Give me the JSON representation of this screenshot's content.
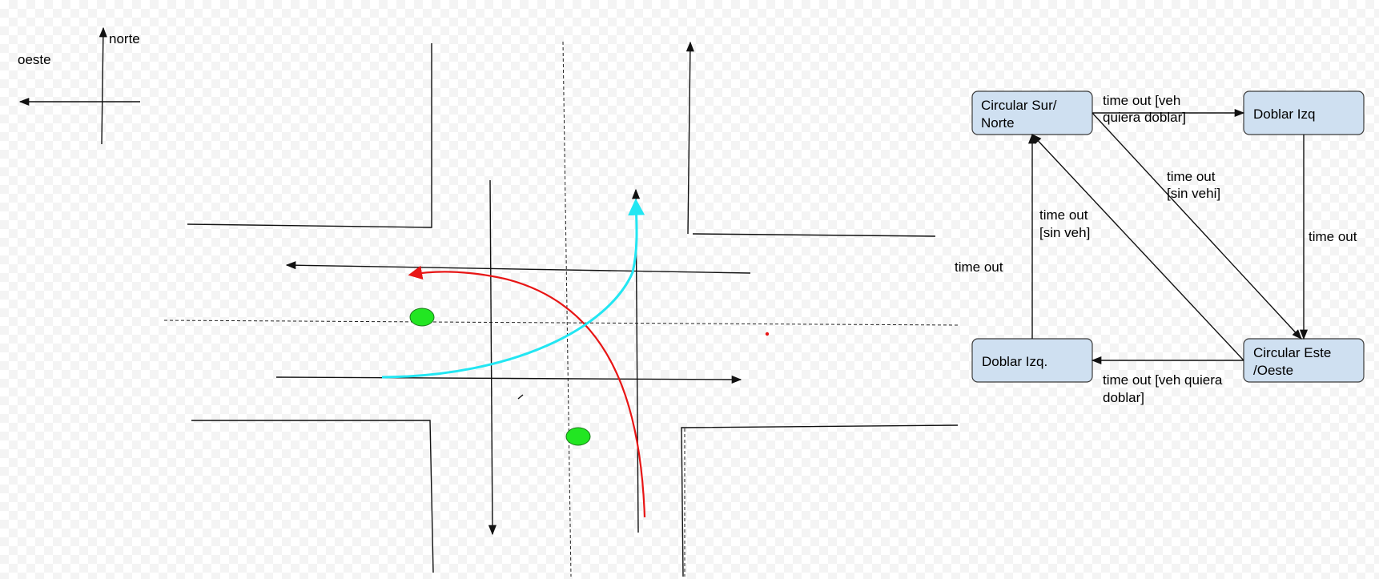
{
  "compass": {
    "north": "norte",
    "west": "oeste"
  },
  "colors": {
    "cyan_path": "#22e6f2",
    "red_path": "#e81515",
    "light": "#22e622",
    "node_fill": "#cfe0f1"
  },
  "state_machine": {
    "states": {
      "sur_norte": [
        "Circular Sur/",
        "Norte"
      ],
      "doblar_izq_top": [
        "Doblar Izq"
      ],
      "este_oeste": [
        "Circular Este",
        "/Oeste"
      ],
      "doblar_izq_bottom": [
        "Doblar Izq."
      ]
    },
    "transitions": {
      "t1": [
        "time out [veh",
        "quiera doblar]"
      ],
      "t2": [
        "time out",
        "[sin vehi]"
      ],
      "t3": [
        "time out"
      ],
      "t4": [
        "time out [veh quiera",
        "doblar]"
      ],
      "t5": [
        "time out",
        "[sin veh]"
      ],
      "t6": [
        "time out"
      ]
    }
  }
}
